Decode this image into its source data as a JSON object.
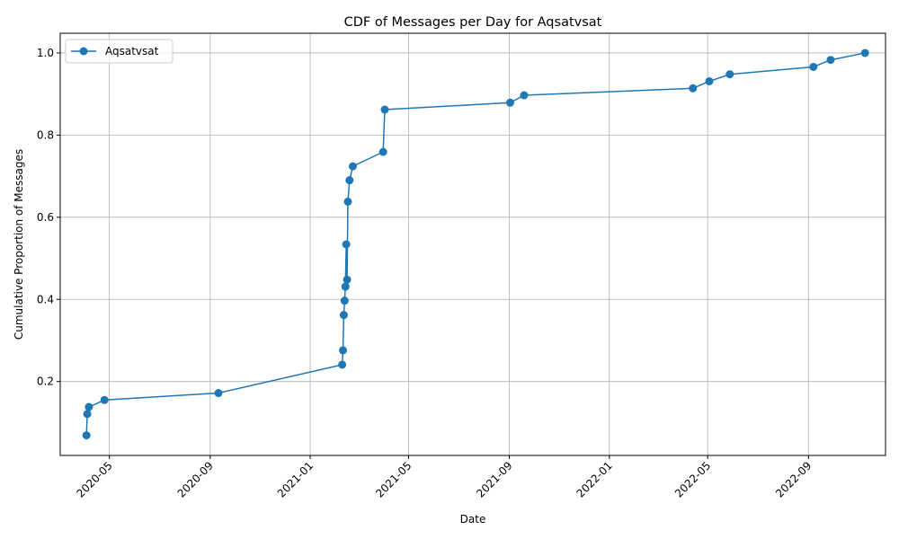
{
  "chart_data": {
    "type": "line",
    "title": "CDF of Messages per Day for Aqsatvsat",
    "xlabel": "Date",
    "ylabel": "Cumulative Proportion of Messages",
    "xlim": [
      "2020-03-02",
      "2022-12-04"
    ],
    "ylim": [
      0.02,
      1.048
    ],
    "x_ticks": [
      "2020-05",
      "2020-09",
      "2021-01",
      "2021-05",
      "2021-09",
      "2022-01",
      "2022-05",
      "2022-09"
    ],
    "y_ticks": [
      "0.2",
      "0.4",
      "0.6",
      "0.8",
      "1.0"
    ],
    "y_tick_values": [
      0.2,
      0.4,
      0.6,
      0.8,
      1.0
    ],
    "grid": true,
    "legend_position": "top-left",
    "series": [
      {
        "name": "Aqsatvsat",
        "color": "#1f77b4",
        "marker": "circle",
        "points": [
          {
            "x": "2020-04-03",
            "y": 0.069
          },
          {
            "x": "2020-04-04",
            "y": 0.121
          },
          {
            "x": "2020-04-06",
            "y": 0.138
          },
          {
            "x": "2020-04-25",
            "y": 0.155
          },
          {
            "x": "2020-09-11",
            "y": 0.172
          },
          {
            "x": "2021-02-09",
            "y": 0.241
          },
          {
            "x": "2021-02-10",
            "y": 0.276
          },
          {
            "x": "2021-02-11",
            "y": 0.362
          },
          {
            "x": "2021-02-12",
            "y": 0.397
          },
          {
            "x": "2021-02-13",
            "y": 0.431
          },
          {
            "x": "2021-02-14",
            "y": 0.534
          },
          {
            "x": "2021-02-15",
            "y": 0.448
          },
          {
            "x": "2021-02-16",
            "y": 0.638
          },
          {
            "x": "2021-02-18",
            "y": 0.69
          },
          {
            "x": "2021-02-22",
            "y": 0.724
          },
          {
            "x": "2021-03-31",
            "y": 0.759
          },
          {
            "x": "2021-04-02",
            "y": 0.862
          },
          {
            "x": "2021-09-02",
            "y": 0.879
          },
          {
            "x": "2021-09-19",
            "y": 0.897
          },
          {
            "x": "2022-04-13",
            "y": 0.914
          },
          {
            "x": "2022-05-03",
            "y": 0.931
          },
          {
            "x": "2022-05-28",
            "y": 0.948
          },
          {
            "x": "2022-09-07",
            "y": 0.966
          },
          {
            "x": "2022-09-28",
            "y": 0.983
          },
          {
            "x": "2022-11-09",
            "y": 1.0
          }
        ]
      }
    ]
  }
}
